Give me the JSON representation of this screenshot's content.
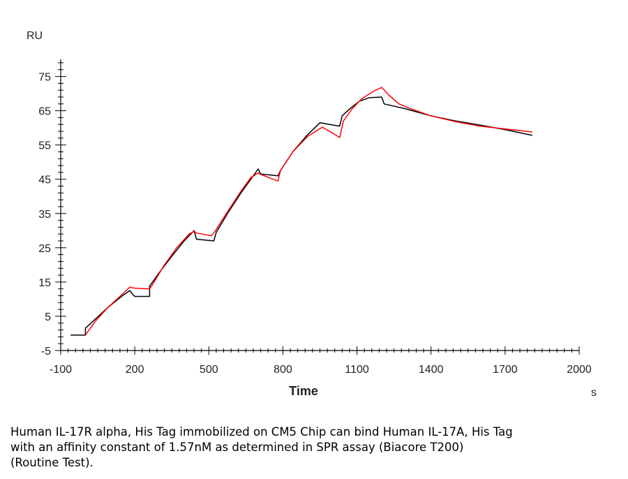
{
  "chart_data": {
    "type": "line",
    "ylabel": "RU",
    "xlabel": "Time",
    "x_unit": "s",
    "xlim": [
      -100,
      2000
    ],
    "ylim": [
      -5,
      80
    ],
    "x_ticks": [
      -100,
      200,
      500,
      800,
      1100,
      1400,
      1700,
      2000
    ],
    "y_ticks": [
      -5,
      5,
      15,
      25,
      35,
      45,
      55,
      65,
      75
    ],
    "grid": false,
    "series": [
      {
        "color": "#000000",
        "points": [
          [
            -60,
            -0.5
          ],
          [
            0,
            -0.5
          ],
          [
            0,
            1.5
          ],
          [
            30,
            3.5
          ],
          [
            90,
            7.5
          ],
          [
            150,
            11
          ],
          [
            180,
            12.5
          ],
          [
            190,
            11.5
          ],
          [
            200,
            10.8
          ],
          [
            260,
            10.8
          ],
          [
            260,
            13.8
          ],
          [
            300,
            17.8
          ],
          [
            350,
            22.5
          ],
          [
            400,
            27
          ],
          [
            440,
            30
          ],
          [
            450,
            27.5
          ],
          [
            520,
            27
          ],
          [
            530,
            29.5
          ],
          [
            580,
            35.5
          ],
          [
            630,
            41
          ],
          [
            680,
            46
          ],
          [
            700,
            48
          ],
          [
            710,
            46.5
          ],
          [
            780,
            46
          ],
          [
            790,
            47.5
          ],
          [
            840,
            53
          ],
          [
            900,
            58
          ],
          [
            950,
            61.5
          ],
          [
            1030,
            60.5
          ],
          [
            1040,
            63.5
          ],
          [
            1070,
            65.5
          ],
          [
            1110,
            67.8
          ],
          [
            1150,
            68.8
          ],
          [
            1200,
            69
          ],
          [
            1210,
            67
          ],
          [
            1300,
            65.5
          ],
          [
            1400,
            63.5
          ],
          [
            1500,
            62
          ],
          [
            1600,
            60.8
          ],
          [
            1700,
            59.5
          ],
          [
            1810,
            57.8
          ]
        ]
      },
      {
        "color": "#ff0000",
        "points": [
          [
            0,
            -0.5
          ],
          [
            10,
            0.5
          ],
          [
            40,
            3.5
          ],
          [
            90,
            7.5
          ],
          [
            140,
            10.8
          ],
          [
            180,
            13.5
          ],
          [
            200,
            13.2
          ],
          [
            260,
            13
          ],
          [
            270,
            14
          ],
          [
            320,
            20
          ],
          [
            370,
            25
          ],
          [
            420,
            29
          ],
          [
            440,
            29.8
          ],
          [
            450,
            29.3
          ],
          [
            510,
            28.5
          ],
          [
            525,
            29.8
          ],
          [
            580,
            36
          ],
          [
            630,
            41.5
          ],
          [
            670,
            45.5
          ],
          [
            700,
            46.8
          ],
          [
            710,
            46.4
          ],
          [
            760,
            45
          ],
          [
            780,
            44.5
          ],
          [
            790,
            47.5
          ],
          [
            840,
            53
          ],
          [
            900,
            57.5
          ],
          [
            960,
            60.2
          ],
          [
            1000,
            58.5
          ],
          [
            1030,
            57.2
          ],
          [
            1045,
            62
          ],
          [
            1080,
            65.5
          ],
          [
            1120,
            68.5
          ],
          [
            1170,
            70.8
          ],
          [
            1200,
            71.8
          ],
          [
            1230,
            69.5
          ],
          [
            1270,
            67
          ],
          [
            1320,
            65.5
          ],
          [
            1400,
            63.5
          ],
          [
            1500,
            61.8
          ],
          [
            1600,
            60.5
          ],
          [
            1700,
            59.7
          ],
          [
            1810,
            58.8
          ]
        ]
      }
    ]
  },
  "caption": {
    "lines": [
      "Human IL-17R alpha, His Tag immobilized on CM5 Chip can bind Human IL-17A, His Tag",
      "with an affinity constant of 1.57nM as determined in SPR assay (Biacore T200)",
      "(Routine Test)."
    ]
  }
}
